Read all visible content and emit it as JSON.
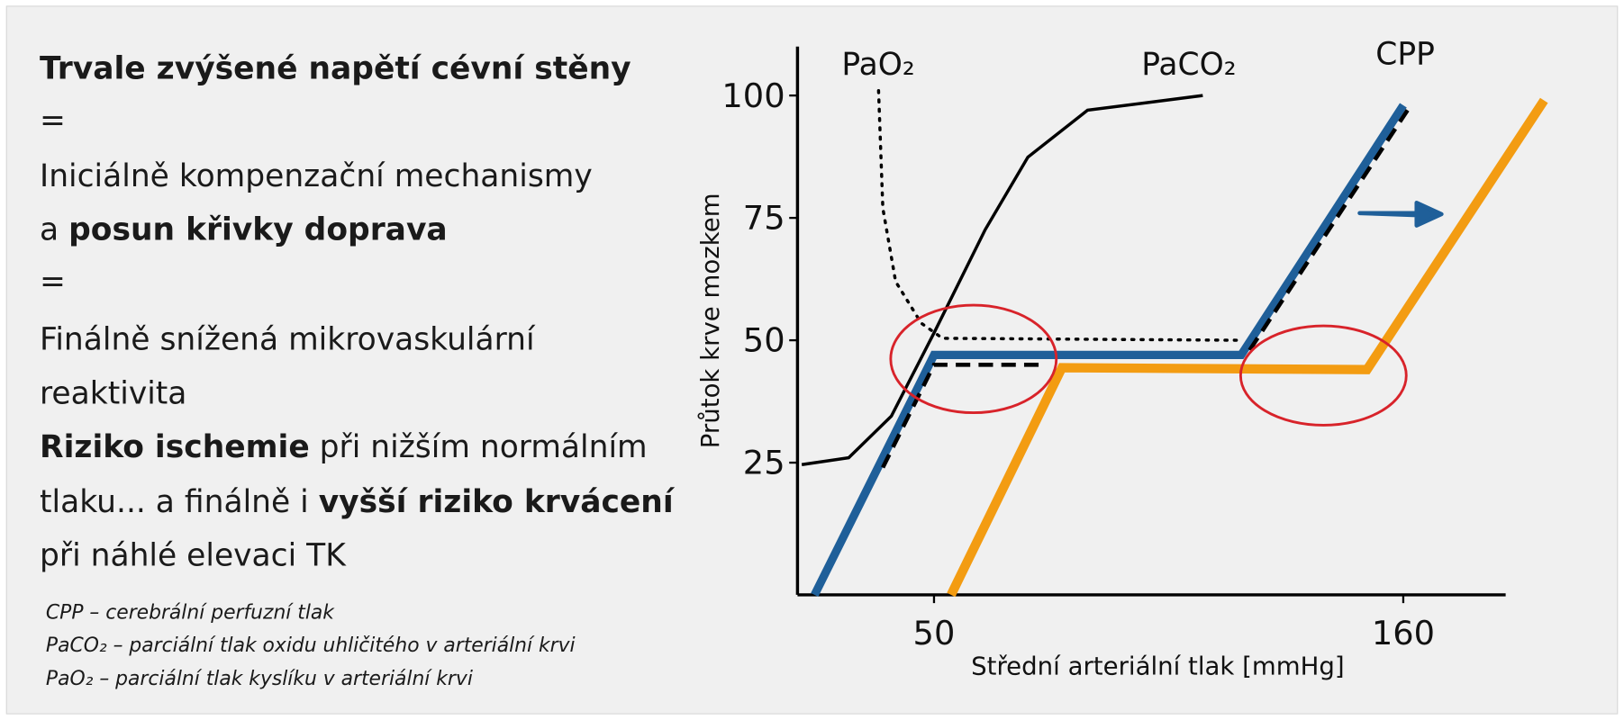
{
  "text": {
    "lines": [
      [
        "Trvale zvýšené napětí cévní stěny"
      ],
      [
        "="
      ],
      [
        "Iniciálně kompenzační mechanismy"
      ],
      [
        "a ",
        "posun křivky doprava"
      ],
      [
        "="
      ],
      [
        "Finálně snížená mikrovaskulární"
      ],
      [
        "reaktivita"
      ],
      [
        "Riziko ischemie",
        " při nižším normálním"
      ],
      [
        "tlaku... a finálně i ",
        "vyšší riziko krvácení"
      ],
      [
        "při náhlé elevaci TK"
      ]
    ],
    "footnotes": [
      "CPP – cerebrální perfuzní tlak",
      "PaCO₂ – parciální tlak oxidu uhličitého v arteriální krvi",
      "PaO₂ – parciální tlak kyslíku v arteriální krvi"
    ]
  },
  "chart_data": {
    "type": "line",
    "x_label": "Střední arteriální tlak [mmHg]",
    "y_label": "Průtok krve mozkem",
    "xlim": [
      18,
      184
    ],
    "ylim": [
      -2,
      110
    ],
    "xticks": [
      50,
      160
    ],
    "yticks": [
      25,
      50,
      75,
      100
    ],
    "grid": false,
    "series": [
      {
        "name": "PaO₂",
        "color": "#000000",
        "style": "dotted",
        "width": 3,
        "x": [
          37,
          38,
          41,
          47,
          52,
          122
        ],
        "values": [
          101,
          77,
          62,
          53.5,
          50.4,
          50
        ]
      },
      {
        "name": "PaCO₂",
        "color": "#000000",
        "style": "solid",
        "width": 3,
        "x": [
          19,
          30,
          40,
          50,
          62,
          72,
          86,
          113
        ],
        "values": [
          24.6,
          26,
          34.5,
          51.5,
          72.6,
          87.4,
          97,
          100
        ]
      },
      {
        "color": "#f39c12",
        "style": "solid",
        "width": 9,
        "x": [
          54,
          80,
          151.5,
          193
        ],
        "values": [
          -2,
          44.4,
          44,
          99
        ]
      },
      {
        "name": "CPP",
        "color": "#1f5f99",
        "style": "solid",
        "width": 8,
        "x": [
          22,
          50,
          122,
          160
        ],
        "values": [
          -2,
          47,
          47,
          98
        ]
      },
      {
        "color": "#000000",
        "style": "dashed",
        "width": 4,
        "x": [
          38,
          50,
          76,
          null,
          124,
          161
        ],
        "values": [
          24,
          45,
          45,
          null,
          48,
          97
        ]
      }
    ]
  }
}
